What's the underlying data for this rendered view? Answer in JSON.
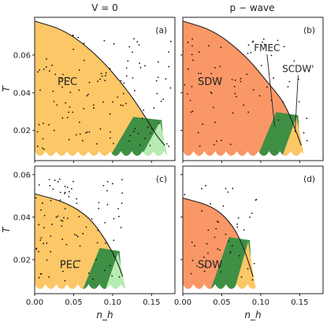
{
  "columns": [
    "V = 0",
    "p − wave"
  ],
  "y_axis_label": "T",
  "x_axis_label": "n_h",
  "x_ticks": [
    "0.00",
    "0.05",
    "0.10",
    "0.15"
  ],
  "y_ticks": [
    "0.02",
    "0.04",
    "0.06"
  ],
  "colors": {
    "pec": "#fcc766",
    "sdw": "#fa9766",
    "dark_green": "#3f8f45",
    "light_green": "#b6ecb1",
    "wave_fill": "#ffffff",
    "boundary": "#222222",
    "dots": "#111111"
  },
  "chart_data": [
    {
      "type": "scatter",
      "panel": "a",
      "tag": "(a)",
      "title": "V = 0",
      "ylabel": "T",
      "xlabel": "",
      "xlim": [
        0.0,
        0.18
      ],
      "ylim": [
        0.004,
        0.08
      ],
      "regions": [
        {
          "label": "PEC",
          "color": "pec",
          "label_at": [
            0.042,
            0.044
          ]
        },
        {
          "label": "",
          "color": "dark_green"
        },
        {
          "label": "",
          "color": "light_green"
        }
      ],
      "boundary": [
        [
          0.0,
          0.078
        ],
        [
          0.04,
          0.073
        ],
        [
          0.08,
          0.06
        ],
        [
          0.11,
          0.046
        ],
        [
          0.135,
          0.032
        ],
        [
          0.155,
          0.018
        ],
        [
          0.167,
          0.012
        ]
      ],
      "dots_seed": 11,
      "dots_count": 120
    },
    {
      "type": "scatter",
      "panel": "b",
      "tag": "(b)",
      "title": "p − wave",
      "ylabel": "",
      "xlabel": "",
      "xlim": [
        0.0,
        0.18
      ],
      "ylim": [
        0.004,
        0.08
      ],
      "regions": [
        {
          "label": "SDW",
          "color": "sdw",
          "label_at": [
            0.035,
            0.044
          ]
        },
        {
          "label": "",
          "color": "dark_green"
        },
        {
          "label": "",
          "color": "pec"
        }
      ],
      "annotations": [
        {
          "text": "FMEC",
          "text_at": [
            0.108,
            0.062
          ],
          "arrow_to": [
            0.118,
            0.022
          ]
        },
        {
          "text": "SCDW'",
          "text_at": [
            0.148,
            0.051
          ],
          "arrow_to": [
            0.144,
            0.019
          ]
        }
      ],
      "boundary": [
        [
          0.0,
          0.078
        ],
        [
          0.04,
          0.073
        ],
        [
          0.08,
          0.06
        ],
        [
          0.11,
          0.045
        ],
        [
          0.13,
          0.035
        ],
        [
          0.145,
          0.02
        ],
        [
          0.152,
          0.012
        ]
      ],
      "dots_seed": 23,
      "dots_count": 70
    },
    {
      "type": "scatter",
      "panel": "c",
      "tag": "(c)",
      "title": "",
      "ylabel": "T",
      "xlabel": "n_h",
      "xlim": [
        0.0,
        0.18
      ],
      "ylim": [
        0.004,
        0.064
      ],
      "regions": [
        {
          "label": "PEC",
          "color": "pec",
          "label_at": [
            0.045,
            0.016
          ]
        },
        {
          "label": "",
          "color": "dark_green"
        },
        {
          "label": "",
          "color": "light_green"
        }
      ],
      "boundary": [
        [
          0.0,
          0.051
        ],
        [
          0.04,
          0.047
        ],
        [
          0.07,
          0.04
        ],
        [
          0.09,
          0.03
        ],
        [
          0.105,
          0.02
        ],
        [
          0.113,
          0.012
        ]
      ],
      "dots_seed": 37,
      "dots_count": 90
    },
    {
      "type": "scatter",
      "panel": "d",
      "tag": "(d)",
      "title": "",
      "ylabel": "",
      "xlabel": "n_h",
      "xlim": [
        0.0,
        0.18
      ],
      "ylim": [
        0.004,
        0.064
      ],
      "regions": [
        {
          "label": "SDW",
          "color": "sdw",
          "label_at": [
            0.035,
            0.016
          ]
        },
        {
          "label": "",
          "color": "dark_green"
        },
        {
          "label": "",
          "color": "pec"
        }
      ],
      "boundary": [
        [
          0.0,
          0.049
        ],
        [
          0.04,
          0.045
        ],
        [
          0.065,
          0.036
        ],
        [
          0.08,
          0.024
        ],
        [
          0.09,
          0.012
        ]
      ],
      "dots_seed": 51,
      "dots_count": 45
    }
  ]
}
